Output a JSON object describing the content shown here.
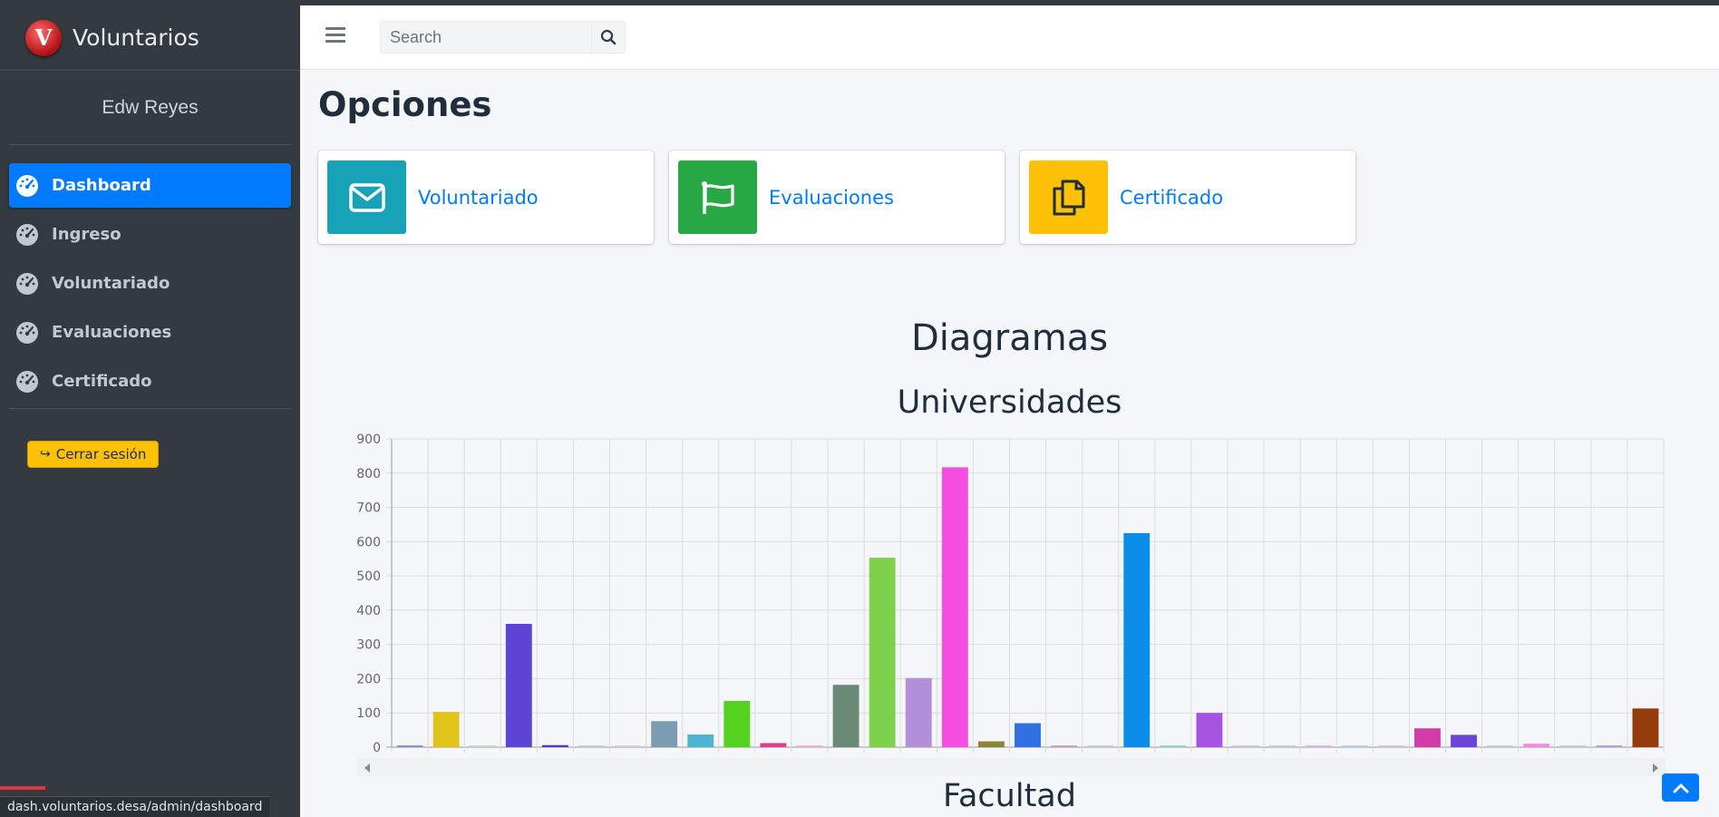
{
  "brand": {
    "name": "Voluntarios",
    "logo_letter": "V"
  },
  "user": {
    "name": "Edw Reyes"
  },
  "nav": {
    "items": [
      {
        "label": "Dashboard",
        "active": true,
        "icon": "tachometer-icon"
      },
      {
        "label": "Ingreso",
        "active": false,
        "icon": "tachometer-icon"
      },
      {
        "label": "Voluntariado",
        "active": false,
        "icon": "tachometer-icon"
      },
      {
        "label": "Evaluaciones",
        "active": false,
        "icon": "tachometer-icon"
      },
      {
        "label": "Certificado",
        "active": false,
        "icon": "tachometer-icon"
      }
    ],
    "logout_label": "Cerrar sesión"
  },
  "header": {
    "search_placeholder": "Search"
  },
  "main": {
    "title": "Opciones",
    "cards": [
      {
        "label": "Voluntariado",
        "color": "#17a2b8",
        "icon": "envelope-icon"
      },
      {
        "label": "Evaluaciones",
        "color": "#28a745",
        "icon": "flag-icon"
      },
      {
        "label": "Certificado",
        "color": "#ffc107",
        "icon": "copy-icon"
      }
    ],
    "section_title": "Diagramas",
    "next_chart_title": "Facultad"
  },
  "status_url": "dash.voluntarios.desa/admin/dashboard",
  "chart_data": {
    "type": "bar",
    "title": "Universidades",
    "ylim": [
      0,
      900
    ],
    "yticks": [
      0,
      100,
      200,
      300,
      400,
      500,
      600,
      700,
      800,
      900
    ],
    "grid": true,
    "values": [
      3,
      103,
      2,
      360,
      6,
      0,
      2,
      76,
      37,
      135,
      12,
      2,
      182,
      553,
      202,
      817,
      17,
      70,
      3,
      0,
      625,
      3,
      100,
      0,
      0,
      3,
      2,
      0,
      55,
      36,
      0,
      10,
      0,
      3,
      113
    ],
    "colors": [
      "#8a93c9",
      "#e0c31b",
      "#c9d7c2",
      "#5e44d4",
      "#4a3fbf",
      "#cccccc",
      "#d9cfcf",
      "#7c9cb4",
      "#4fb3d1",
      "#55d11f",
      "#e03e89",
      "#e8bdb6",
      "#6a8a76",
      "#7fd14d",
      "#b28fd8",
      "#f44ee0",
      "#8e8438",
      "#2f6fe0",
      "#c7a7a7",
      "#cccccc",
      "#0b8de8",
      "#9ed6c4",
      "#a553e0",
      "#cccccc",
      "#cccccc",
      "#e0b7e3",
      "#b7d3e3",
      "#cccccc",
      "#d13ca8",
      "#6a45d6",
      "#cccccc",
      "#f28ae0",
      "#cccccc",
      "#a8a8d8",
      "#943c0c"
    ]
  }
}
